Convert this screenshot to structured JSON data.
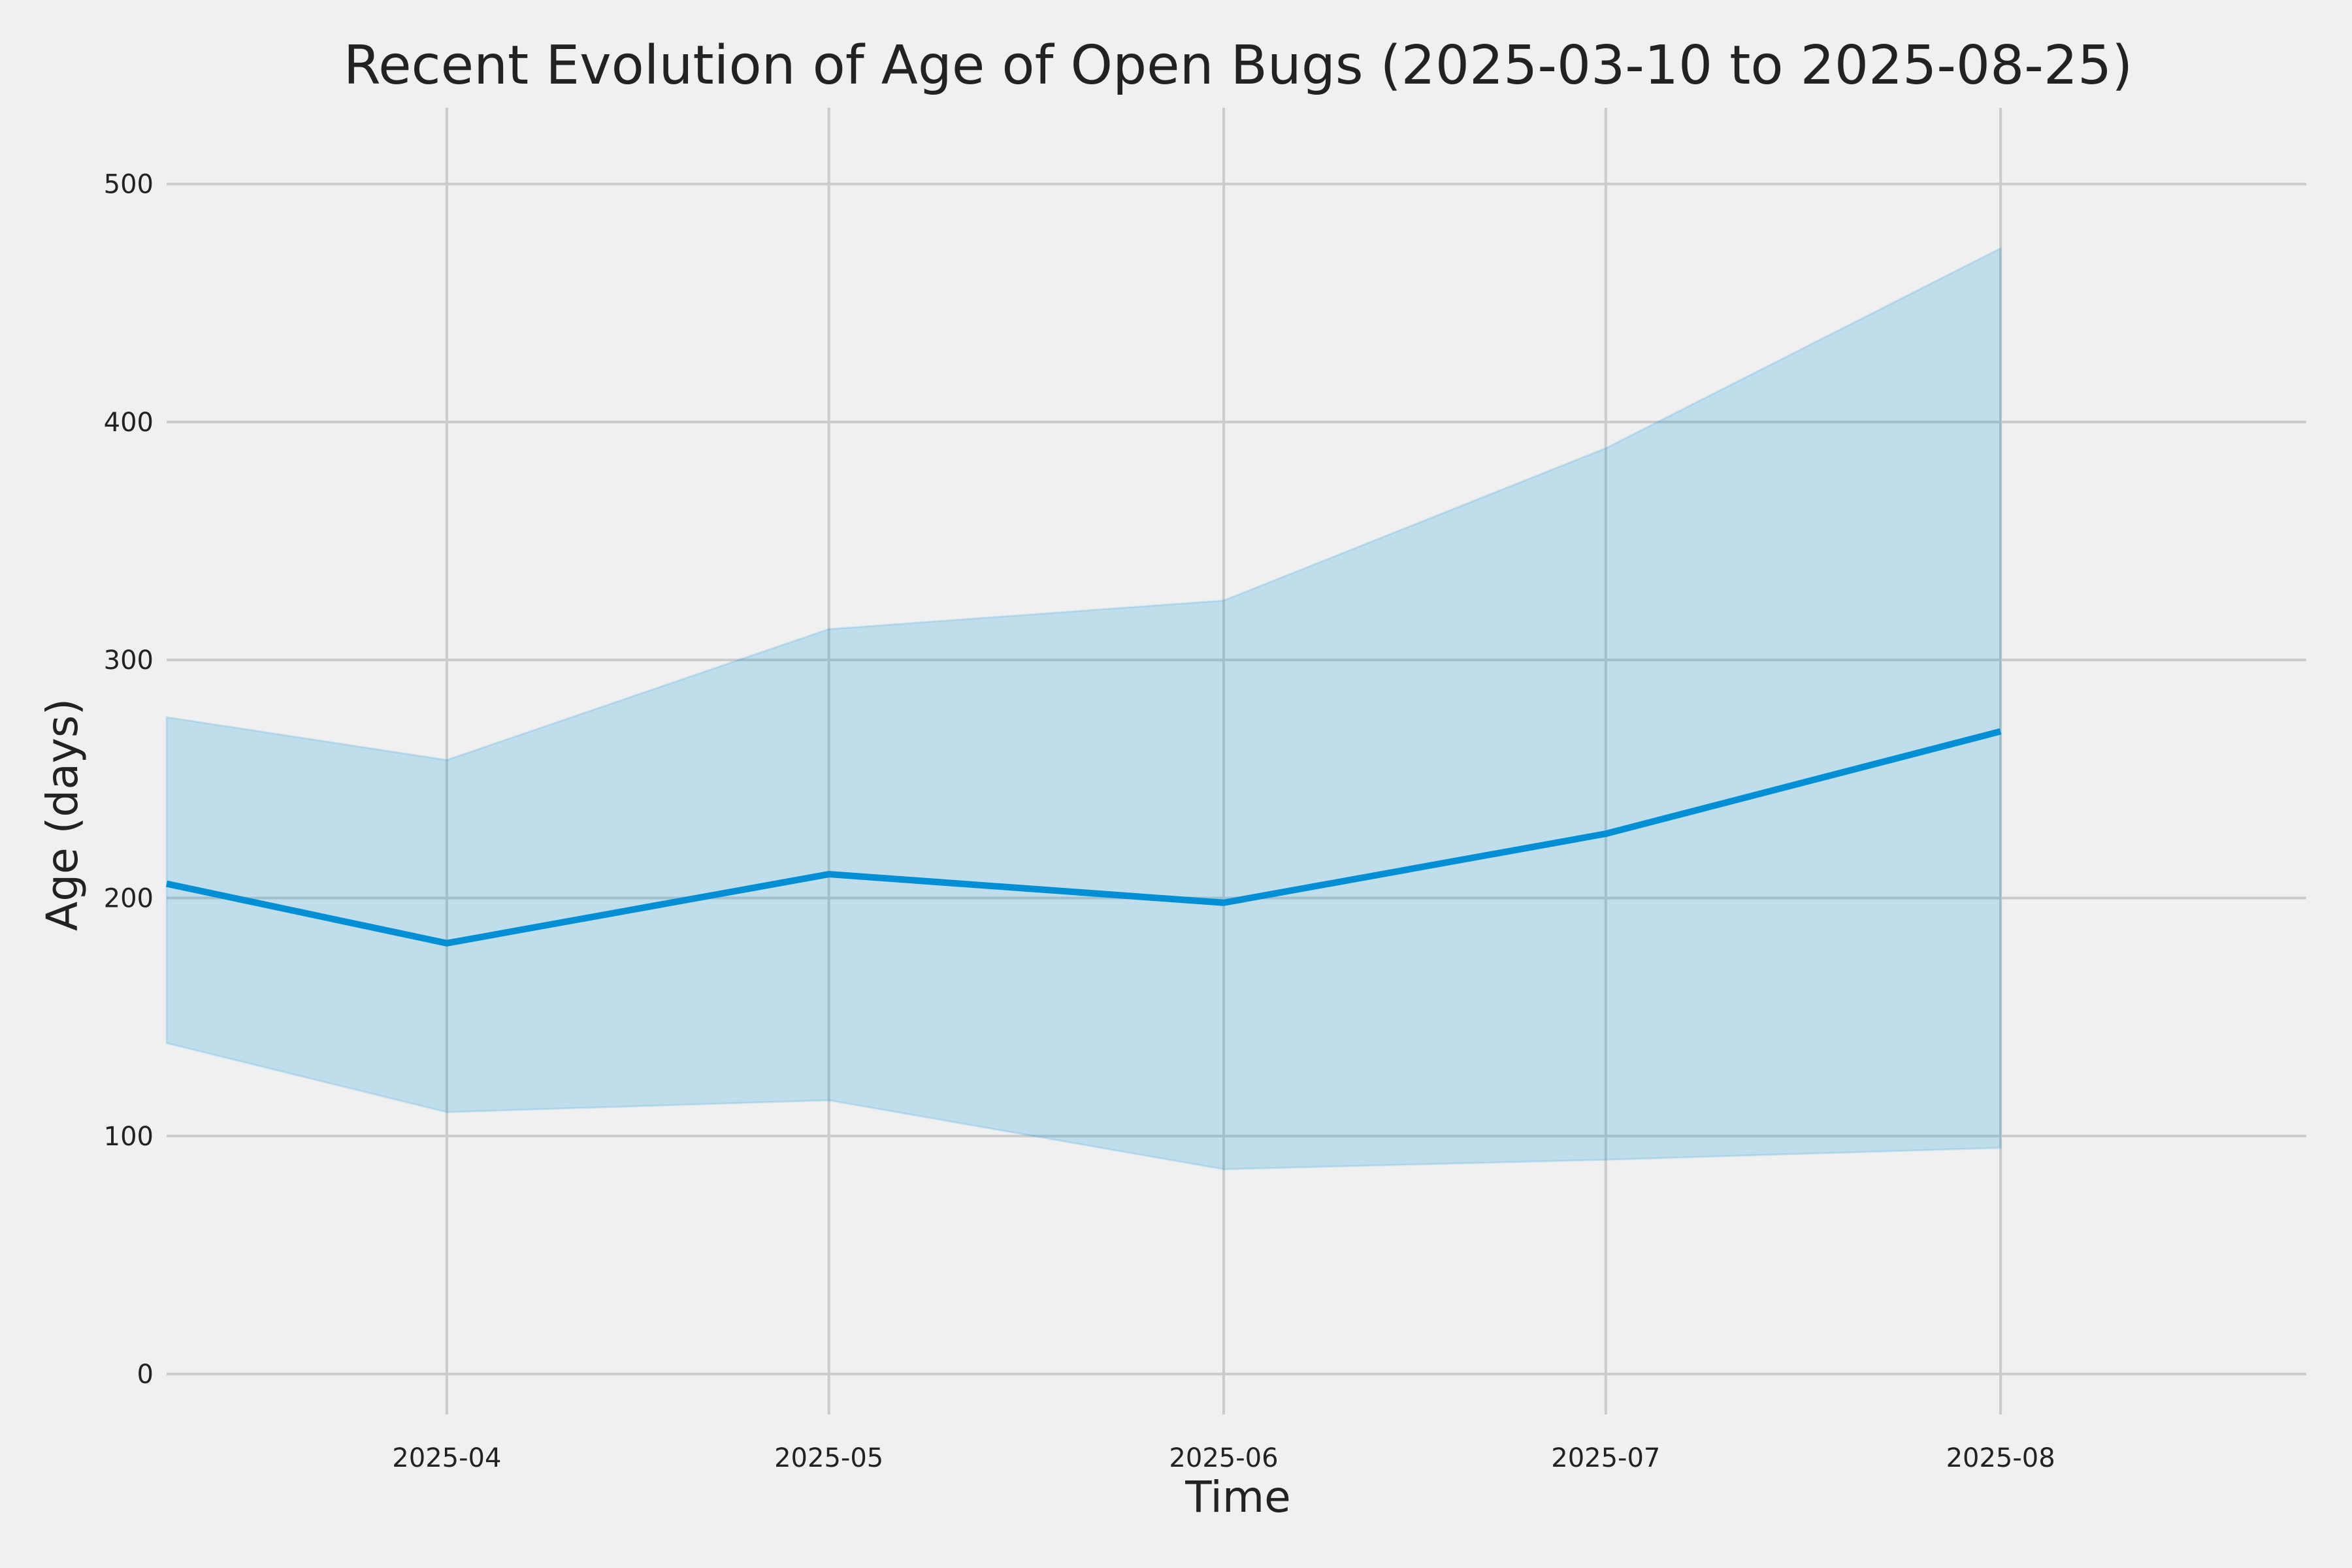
{
  "chart_data": {
    "type": "line",
    "title": "Recent Evolution of Age of Open Bugs (2025-03-10 to 2025-08-25)",
    "xlabel": "Time",
    "ylabel": "Age (days)",
    "xlim": [
      "2025-03-10",
      "2025-08-25"
    ],
    "ylim": [
      -17,
      532
    ],
    "yticks": [
      0,
      100,
      200,
      300,
      400,
      500
    ],
    "xticks": [
      {
        "date": "2025-04-01",
        "label": "2025-04"
      },
      {
        "date": "2025-05-01",
        "label": "2025-05"
      },
      {
        "date": "2025-06-01",
        "label": "2025-06"
      },
      {
        "date": "2025-07-01",
        "label": "2025-07"
      },
      {
        "date": "2025-08-01",
        "label": "2025-08"
      }
    ],
    "grid": true,
    "series": [
      {
        "kind": "line",
        "color": "#008fd5",
        "x": [
          "2025-03-10",
          "2025-04-01",
          "2025-05-01",
          "2025-06-01",
          "2025-07-01",
          "2025-08-01"
        ],
        "y": [
          206,
          181,
          210,
          198,
          227,
          270
        ]
      },
      {
        "kind": "band",
        "color": "#008fd5",
        "x": [
          "2025-03-10",
          "2025-04-01",
          "2025-05-01",
          "2025-06-01",
          "2025-07-01",
          "2025-08-01"
        ],
        "lower": [
          139,
          110,
          115,
          86,
          90,
          95
        ],
        "upper": [
          276,
          258,
          313,
          325,
          389,
          473
        ]
      }
    ]
  }
}
